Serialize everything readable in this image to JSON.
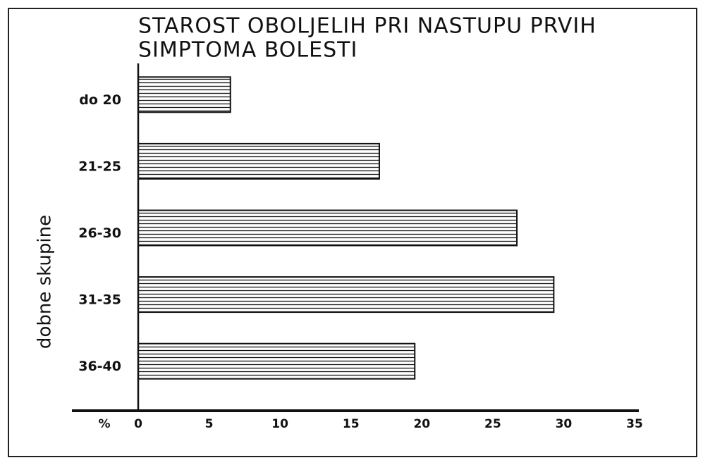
{
  "chart_data": {
    "type": "bar",
    "orientation": "horizontal",
    "title": [
      "STAROST OBOLJELIH PRI NASTUPU PRVIH",
      "SIMPTOMA BOLESTI"
    ],
    "y_label": "dobne skupine",
    "x_unit_label": "%",
    "categories": [
      "do 20",
      "21-25",
      "26-30",
      "31-35",
      "36-40"
    ],
    "values": [
      6.5,
      17,
      26.7,
      29.3,
      19.5
    ],
    "color": "#111111",
    "xlim": [
      0,
      35
    ],
    "xticks": [
      0,
      5,
      10,
      15,
      20,
      25,
      30,
      35
    ],
    "grid": false
  }
}
